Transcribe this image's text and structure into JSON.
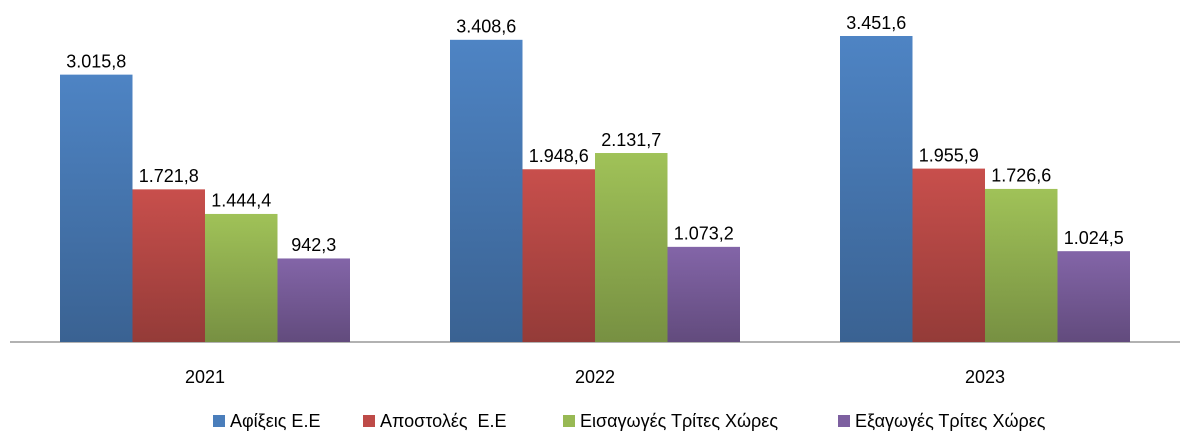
{
  "chart_data": {
    "type": "bar",
    "categories": [
      "2021",
      "2022",
      "2023"
    ],
    "series": [
      {
        "name": "Αφίξεις Ε.Ε",
        "color": "#4a7ebb",
        "values": [
          3015.8,
          3408.6,
          3451.6
        ],
        "value_labels": [
          "3.015,8",
          "3.408,6",
          "3.451,6"
        ]
      },
      {
        "name": "Αποστολές  Ε.Ε",
        "color": "#be4b48",
        "values": [
          1721.8,
          1948.6,
          1955.9
        ],
        "value_labels": [
          "1.721,8",
          "1.948,6",
          "1.955,9"
        ]
      },
      {
        "name": "Εισαγωγές Τρίτες Χώρες",
        "color": "#98b954",
        "values": [
          1444.4,
          2131.7,
          1726.6
        ],
        "value_labels": [
          "1.444,4",
          "2.131,7",
          "1.726,6"
        ]
      },
      {
        "name": "Εξαγωγές Τρίτες Χώρες",
        "color": "#7d60a0",
        "values": [
          942.3,
          1073.2,
          1024.5
        ],
        "value_labels": [
          "942,3",
          "1.073,2",
          "1.024,5"
        ]
      }
    ],
    "legend": "bottom"
  }
}
